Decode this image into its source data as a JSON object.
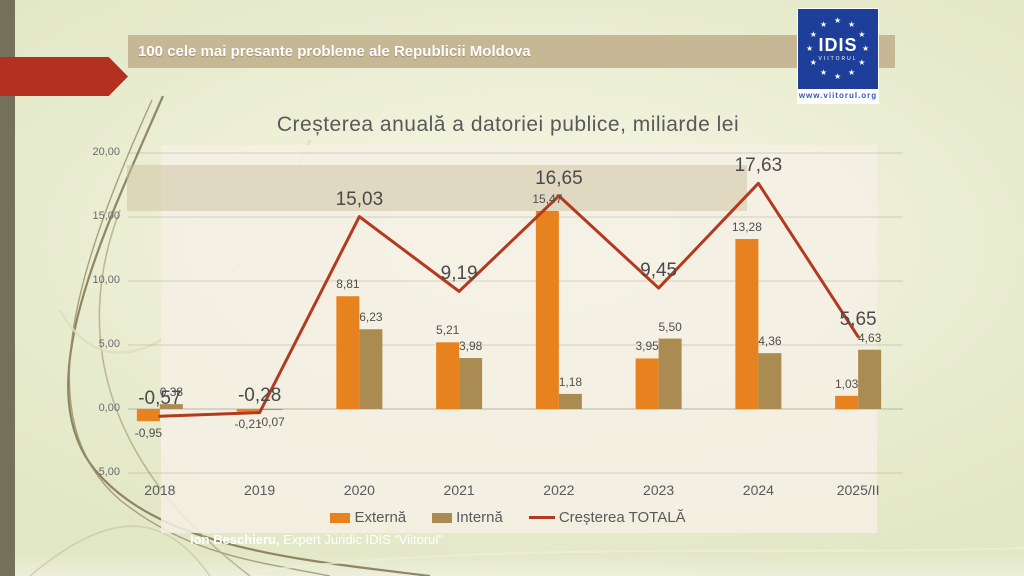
{
  "header": {
    "banner_text": "100 cele mai presante probleme ale Republicii Moldova",
    "logo": {
      "name": "IDIS",
      "subname": "VIITORUL",
      "url": "www.viitorul.org"
    }
  },
  "chart_data": {
    "type": "bar",
    "title": "Creșterea anuală a datoriei publice, miliarde lei",
    "categories": [
      "2018",
      "2019",
      "2020",
      "2021",
      "2022",
      "2023",
      "2024",
      "2025/II"
    ],
    "series": [
      {
        "name": "Externă",
        "type": "bar",
        "color": "#e8821e",
        "values": [
          -0.95,
          -0.21,
          8.81,
          5.21,
          15.47,
          3.95,
          13.28,
          1.03
        ]
      },
      {
        "name": "Internă",
        "type": "bar",
        "color": "#aa8b52",
        "values": [
          0.38,
          -0.07,
          6.23,
          3.98,
          1.18,
          5.5,
          4.36,
          4.63
        ]
      },
      {
        "name": "Creșterea TOTALĂ",
        "type": "line",
        "color": "#b43a1f",
        "values": [
          -0.57,
          -0.28,
          15.03,
          9.19,
          16.65,
          9.45,
          17.63,
          5.65
        ]
      }
    ],
    "ylim": [
      -5,
      20
    ],
    "y_tick_values": [
      20,
      15,
      10,
      5,
      0,
      -5
    ],
    "decimal_separator": ",",
    "grid": true,
    "legend_position": "bottom",
    "data_labels": true
  },
  "footer": {
    "author": "Ion Beschieru,",
    "author_role": " Expert Juridic IDIS “Viitorul”"
  }
}
